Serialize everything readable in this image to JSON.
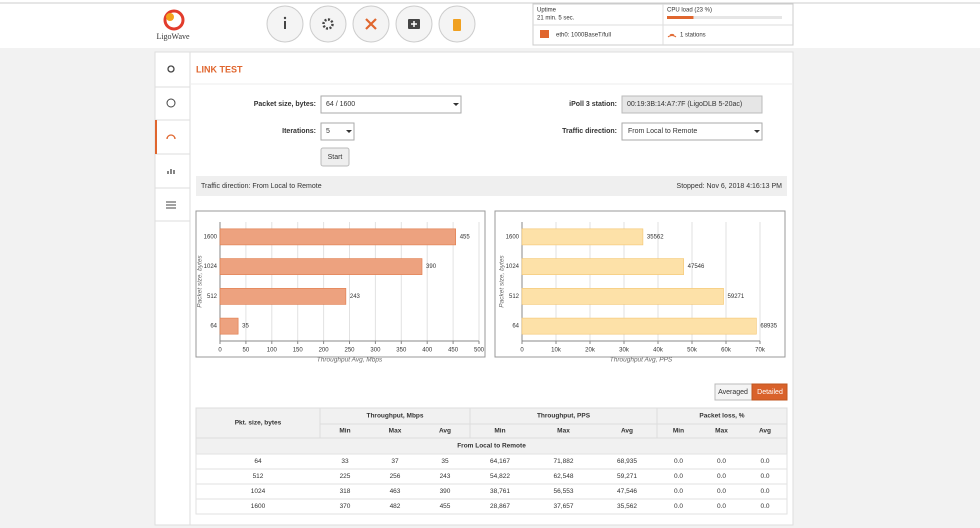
{
  "header": {
    "logo": "LigoWave",
    "uptime_label": "Uptime",
    "uptime": "21 min. 5 sec.",
    "cpu_label": "CPU load (23 %)",
    "cpu_load": 23,
    "interface": "eth0: 1000BaseT/full",
    "stations": "1 stations"
  },
  "page": {
    "title": "LINK TEST",
    "packet_size_label": "Packet size, bytes:",
    "packet_size": "64 / 1600",
    "iterations_label": "Iterations:",
    "iterations": "5",
    "start": "Start",
    "station_label": "iPoll 3 station:",
    "station": "00:19:3B:14:A7:7F (LigoDLB 5-20ac)",
    "direction_label": "Traffic direction:",
    "direction": "From Local to Remote",
    "status_left": "Traffic direction: From Local to Remote",
    "status_right": "Stopped: Nov 6, 2018 4:16:13 PM",
    "view_buttons": [
      "Averaged",
      "Detailed"
    ]
  },
  "chart_data": [
    {
      "type": "bar",
      "orientation": "horizontal",
      "categories": [
        "1600",
        "1024",
        "512",
        "64"
      ],
      "values": [
        455,
        390,
        243,
        35
      ],
      "color": "#eda27f",
      "edge_color": "#e07a48",
      "xlim": [
        0,
        500
      ],
      "xticks": [
        0,
        50,
        100,
        150,
        200,
        250,
        300,
        350,
        400,
        450,
        500
      ],
      "x_label": "Throughput Avg, Mbps",
      "y_label": "Packet size, bytes",
      "grid": true
    },
    {
      "type": "bar",
      "orientation": "horizontal",
      "categories": [
        "1600",
        "1024",
        "512",
        "64"
      ],
      "values": [
        35562,
        47546,
        59271,
        68935
      ],
      "color": "#fde1a8",
      "edge_color": "#f4c56f",
      "xlim": [
        0,
        70000
      ],
      "xticks": [
        0,
        {
          "value": 10000,
          "label": "10k"
        },
        {
          "value": 20000,
          "label": "20k"
        },
        {
          "value": 30000,
          "label": "30k"
        },
        {
          "value": 40000,
          "label": "40k"
        },
        {
          "value": 50000,
          "label": "50k"
        },
        {
          "value": 60000,
          "label": "60k"
        },
        {
          "value": 70000,
          "label": "70k"
        }
      ],
      "x_label": "Throughput Avg, PPS",
      "y_label": "Packet size, bytes",
      "grid": true
    }
  ],
  "table": {
    "headers": [
      "Pkt. size, bytes",
      "Throughput, Mbps",
      "Throughput, PPS",
      "Packet loss, %"
    ],
    "subheaders": [
      "Min",
      "Max",
      "Avg",
      "Min",
      "Max",
      "Avg",
      "Min",
      "Max",
      "Avg"
    ],
    "group": "From Local to Remote",
    "rows": [
      [
        "64",
        "33",
        "37",
        "35",
        "64,167",
        "71,882",
        "68,935",
        "0.0",
        "0.0",
        "0.0"
      ],
      [
        "512",
        "225",
        "256",
        "243",
        "54,822",
        "62,548",
        "59,271",
        "0.0",
        "0.0",
        "0.0"
      ],
      [
        "1024",
        "318",
        "463",
        "390",
        "38,761",
        "56,553",
        "47,546",
        "0.0",
        "0.0",
        "0.0"
      ],
      [
        "1600",
        "370",
        "482",
        "455",
        "28,867",
        "37,657",
        "35,562",
        "0.0",
        "0.0",
        "0.0"
      ]
    ]
  }
}
